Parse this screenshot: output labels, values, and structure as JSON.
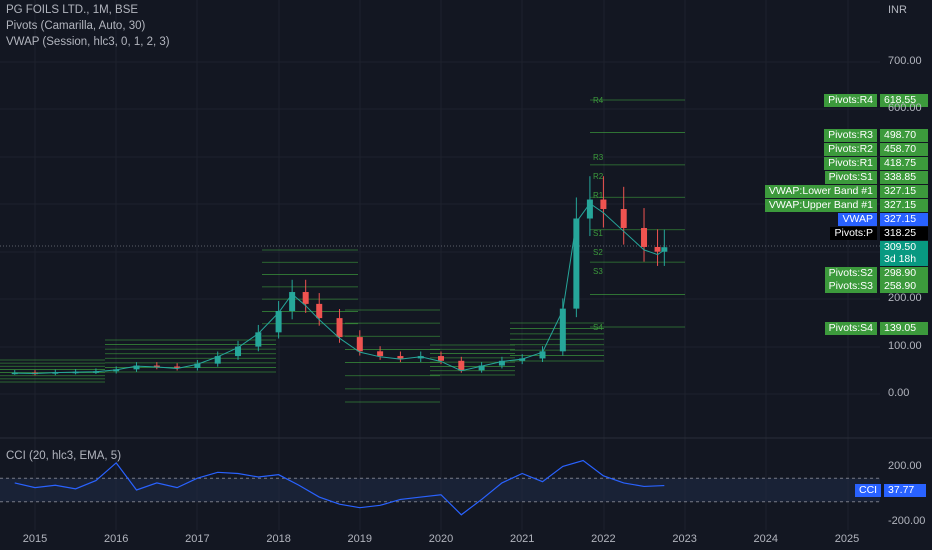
{
  "header": {
    "symbol_title": "PG FOILS LTD., 1M, BSE",
    "pivots_indicator": "Pivots (Camarilla, Auto, 30)",
    "vwap_indicator": "VWAP (Session, hlc3, 0, 1, 2, 3)",
    "currency": "INR"
  },
  "price_axis": {
    "labels": [
      "700.00",
      "600.00",
      "200.00",
      "100.00",
      "0.00"
    ]
  },
  "cci_pane": {
    "title": "CCI (20, hlc3, EMA, 5)",
    "axis_labels": [
      "200.00",
      "-200.00"
    ],
    "tag_name": "CCI",
    "tag_value": "37.77"
  },
  "time_axis": {
    "labels": [
      "2015",
      "2016",
      "2017",
      "2018",
      "2019",
      "2020",
      "2021",
      "2022",
      "2023",
      "2024",
      "2025"
    ]
  },
  "price_tags": [
    {
      "name": "Pivots:R4",
      "value": "618.55",
      "color": "#3c9a3c"
    },
    {
      "name": "Pivots:R3",
      "value": "498.70",
      "color": "#3c9a3c"
    },
    {
      "name": "Pivots:R2",
      "value": "458.70",
      "color": "#3c9a3c"
    },
    {
      "name": "Pivots:R1",
      "value": "418.75",
      "color": "#3c9a3c"
    },
    {
      "name": "Pivots:S1",
      "value": "338.85",
      "color": "#3c9a3c"
    },
    {
      "name": "VWAP:Lower Band #1",
      "value": "327.15",
      "color": "#3c9a3c"
    },
    {
      "name": "VWAP:Upper Band #1",
      "value": "327.15",
      "color": "#3c9a3c"
    },
    {
      "name": "VWAP",
      "value": "327.15",
      "color": "#2962ff"
    },
    {
      "name": "Pivots:P",
      "value": "318.25",
      "color": "#000000"
    },
    {
      "name": "",
      "value": "309.50",
      "color": "#089981"
    },
    {
      "name": "",
      "value": "3d 18h",
      "color": "#089981"
    },
    {
      "name": "Pivots:S2",
      "value": "298.90",
      "color": "#3c9a3c"
    },
    {
      "name": "Pivots:S3",
      "value": "258.90",
      "color": "#3c9a3c"
    },
    {
      "name": "Pivots:S4",
      "value": "139.05",
      "color": "#3c9a3c"
    }
  ],
  "pivot_level_labels": [
    "R4",
    "R3",
    "R2",
    "R1",
    "S1",
    "S2",
    "S3",
    "S4",
    "P"
  ],
  "colors": {
    "up": "#26a69a",
    "down": "#ef5350",
    "pivots": "#3c9a3c",
    "vwap": "#2962ff",
    "cci_line": "#2962ff",
    "background": "#131722"
  },
  "chart_data": [
    {
      "type": "candlestick",
      "title": "PG FOILS LTD., 1M, BSE",
      "timeframe": "1M",
      "x_ticks": [
        "2015",
        "2016",
        "2017",
        "2018",
        "2019",
        "2020",
        "2021",
        "2022",
        "2023",
        "2024",
        "2025"
      ],
      "y_ticks": [
        0,
        100,
        200,
        600,
        700
      ],
      "ylim": [
        -60,
        700
      ],
      "last_price": 309.5,
      "series": [
        {
          "name": "Close",
          "points": [
            [
              "2014-10",
              45
            ],
            [
              "2015-01",
              44
            ],
            [
              "2015-04",
              46
            ],
            [
              "2015-07",
              47
            ],
            [
              "2015-10",
              48
            ],
            [
              "2016-01",
              52
            ],
            [
              "2016-04",
              60
            ],
            [
              "2016-07",
              58
            ],
            [
              "2016-10",
              55
            ],
            [
              "2017-01",
              64
            ],
            [
              "2017-04",
              80
            ],
            [
              "2017-07",
              100
            ],
            [
              "2017-10",
              130
            ],
            [
              "2018-01",
              175
            ],
            [
              "2018-03",
              215
            ],
            [
              "2018-05",
              190
            ],
            [
              "2018-07",
              160
            ],
            [
              "2018-10",
              120
            ],
            [
              "2019-01",
              90
            ],
            [
              "2019-04",
              80
            ],
            [
              "2019-07",
              75
            ],
            [
              "2019-10",
              80
            ],
            [
              "2020-01",
              70
            ],
            [
              "2020-04",
              50
            ],
            [
              "2020-07",
              60
            ],
            [
              "2020-10",
              70
            ],
            [
              "2021-01",
              75
            ],
            [
              "2021-04",
              90
            ],
            [
              "2021-07",
              180
            ],
            [
              "2021-09",
              370
            ],
            [
              "2021-11",
              410
            ],
            [
              "2022-01",
              390
            ],
            [
              "2022-04",
              350
            ],
            [
              "2022-07",
              310
            ],
            [
              "2022-09",
              300
            ],
            [
              "2022-10",
              309.5
            ]
          ]
        }
      ]
    },
    {
      "type": "line",
      "title": "CCI (20, hlc3, EMA, 5)",
      "y_ticks": [
        -200,
        200
      ],
      "ylim": [
        -240,
        240
      ],
      "last_value": 37.77,
      "series": [
        {
          "name": "CCI",
          "points": [
            [
              "2014-10",
              60
            ],
            [
              "2015-01",
              20
            ],
            [
              "2015-04",
              40
            ],
            [
              "2015-07",
              10
            ],
            [
              "2015-10",
              80
            ],
            [
              "2016-01",
              230
            ],
            [
              "2016-04",
              0
            ],
            [
              "2016-07",
              60
            ],
            [
              "2016-10",
              20
            ],
            [
              "2017-01",
              100
            ],
            [
              "2017-04",
              150
            ],
            [
              "2017-07",
              140
            ],
            [
              "2017-10",
              110
            ],
            [
              "2018-01",
              130
            ],
            [
              "2018-04",
              40
            ],
            [
              "2018-07",
              -60
            ],
            [
              "2018-10",
              -120
            ],
            [
              "2019-01",
              -150
            ],
            [
              "2019-04",
              -130
            ],
            [
              "2019-07",
              -80
            ],
            [
              "2019-10",
              -60
            ],
            [
              "2020-01",
              -40
            ],
            [
              "2020-04",
              -210
            ],
            [
              "2020-07",
              -80
            ],
            [
              "2020-10",
              60
            ],
            [
              "2021-01",
              140
            ],
            [
              "2021-04",
              70
            ],
            [
              "2021-07",
              200
            ],
            [
              "2021-10",
              250
            ],
            [
              "2022-01",
              120
            ],
            [
              "2022-04",
              60
            ],
            [
              "2022-07",
              30
            ],
            [
              "2022-10",
              37.77
            ]
          ]
        }
      ]
    }
  ]
}
